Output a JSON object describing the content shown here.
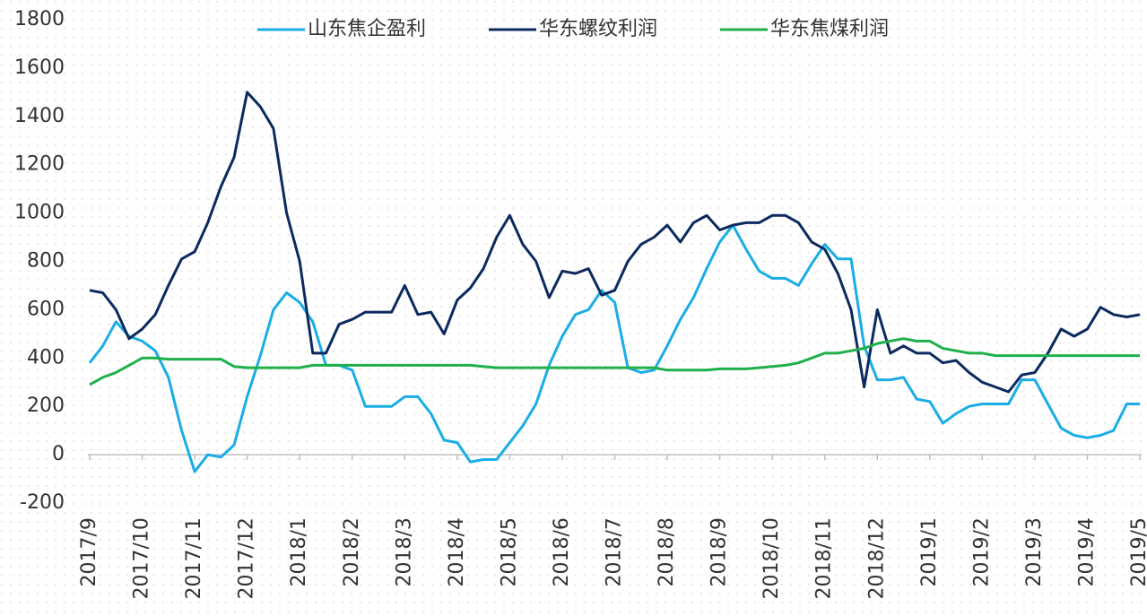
{
  "chart_data": {
    "type": "line",
    "categories": [
      "2017/9",
      null,
      null,
      null,
      "2017/10",
      null,
      null,
      null,
      "2017/11",
      null,
      null,
      null,
      "2017/12",
      null,
      null,
      null,
      "2018/1",
      null,
      null,
      null,
      "2018/2",
      null,
      null,
      null,
      "2018/3",
      null,
      null,
      null,
      "2018/4",
      null,
      null,
      null,
      "2018/5",
      null,
      null,
      null,
      "2018/6",
      null,
      null,
      null,
      "2018/7",
      null,
      null,
      null,
      "2018/8",
      null,
      null,
      null,
      "2018/9",
      null,
      null,
      null,
      "2018/10",
      null,
      null,
      null,
      "2018/11",
      null,
      null,
      null,
      "2018/12",
      null,
      null,
      null,
      "2019/1",
      null,
      null,
      null,
      "2019/2",
      null,
      null,
      null,
      "2019/3",
      null,
      null,
      null,
      "2019/4",
      null,
      null,
      null,
      "2019/5"
    ],
    "series": [
      {
        "name": "山东焦企盈利",
        "color": "#1aade6",
        "values": [
          380,
          450,
          550,
          490,
          470,
          430,
          320,
          100,
          -70,
          0,
          -10,
          40,
          240,
          410,
          600,
          670,
          630,
          550,
          370,
          370,
          350,
          200,
          200,
          200,
          240,
          240,
          170,
          60,
          50,
          -30,
          -20,
          -20,
          50,
          120,
          210,
          370,
          490,
          580,
          600,
          680,
          630,
          360,
          340,
          350,
          450,
          560,
          650,
          770,
          880,
          950,
          850,
          760,
          730,
          730,
          700,
          790,
          870,
          810,
          810,
          450,
          310,
          310,
          320,
          230,
          220,
          130,
          170,
          200,
          210,
          210,
          210,
          310,
          310,
          210,
          110,
          80,
          70,
          80,
          100,
          210,
          210
        ]
      },
      {
        "name": "华东螺纹利润",
        "color": "#0c2a5e",
        "values": [
          680,
          670,
          600,
          480,
          520,
          580,
          700,
          810,
          840,
          960,
          1110,
          1230,
          1500,
          1440,
          1350,
          1000,
          800,
          420,
          420,
          540,
          560,
          590,
          590,
          590,
          700,
          580,
          590,
          500,
          640,
          690,
          770,
          900,
          990,
          870,
          800,
          650,
          760,
          750,
          770,
          660,
          680,
          800,
          870,
          900,
          950,
          880,
          960,
          990,
          930,
          950,
          960,
          960,
          990,
          990,
          960,
          880,
          850,
          750,
          600,
          280,
          600,
          420,
          450,
          420,
          420,
          380,
          390,
          340,
          300,
          280,
          260,
          330,
          340,
          420,
          520,
          490,
          520,
          610,
          580,
          570,
          580
        ]
      },
      {
        "name": "华东焦煤利润",
        "color": "#1fb04b",
        "values": [
          290,
          320,
          340,
          370,
          400,
          400,
          395,
          395,
          395,
          395,
          395,
          365,
          360,
          360,
          360,
          360,
          360,
          370,
          370,
          370,
          370,
          370,
          370,
          370,
          370,
          370,
          370,
          370,
          370,
          370,
          365,
          360,
          360,
          360,
          360,
          360,
          360,
          360,
          360,
          360,
          360,
          360,
          360,
          360,
          350,
          350,
          350,
          350,
          355,
          355,
          355,
          360,
          365,
          370,
          380,
          400,
          420,
          420,
          430,
          440,
          460,
          470,
          480,
          470,
          470,
          440,
          430,
          420,
          420,
          410,
          410,
          410,
          410,
          410,
          410,
          410,
          410,
          410,
          410,
          410,
          410
        ]
      }
    ],
    "ylim": [
      -200,
      1800
    ],
    "yticks": [
      -200,
      0,
      200,
      400,
      600,
      800,
      1000,
      1200,
      1400,
      1600,
      1800
    ],
    "legend": "top"
  }
}
